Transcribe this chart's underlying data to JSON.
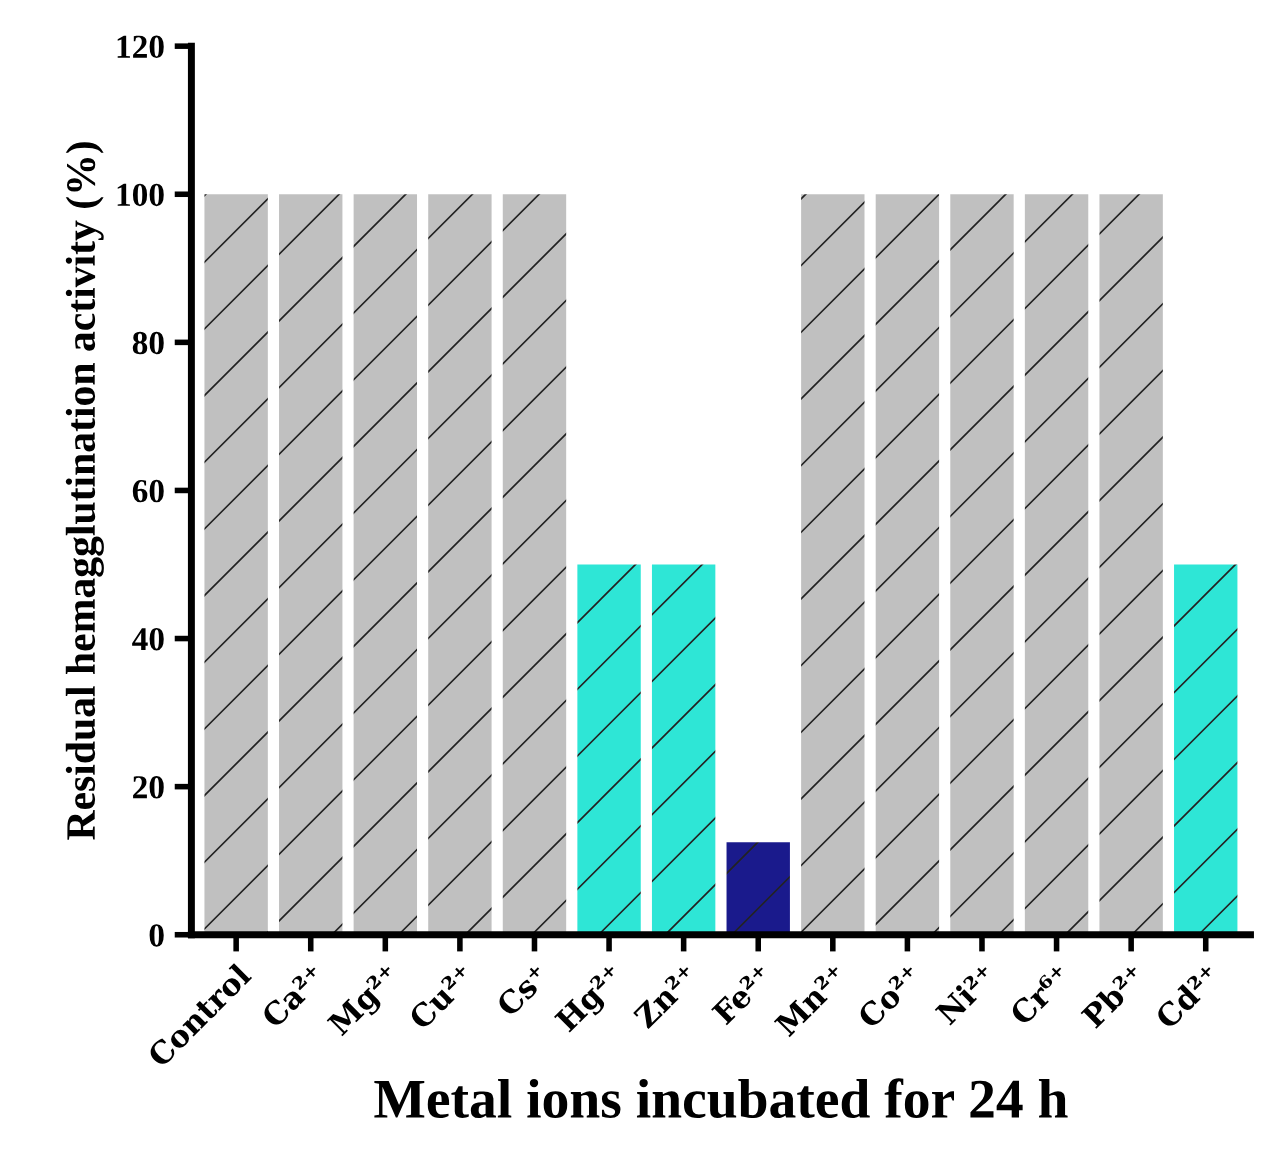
{
  "chart_data": {
    "type": "bar",
    "xlabel": "Metal ions incubated for 24 h",
    "ylabel": "Residual hemagglutination activity (%)",
    "categories": [
      "Control",
      "Ca²⁺",
      "Mg²⁺",
      "Cu²⁺",
      "Cs⁺",
      "Hg²⁺",
      "Zn²⁺",
      "Fe²⁺",
      "Mn²⁺",
      "Co²⁺",
      "Ni²⁺",
      "Cr⁶⁺",
      "Pb²⁺",
      "Cd²⁺"
    ],
    "values": [
      100,
      100,
      100,
      100,
      100,
      50,
      50,
      12.5,
      100,
      100,
      100,
      100,
      100,
      50
    ],
    "colors": [
      "#c0c0c0",
      "#c0c0c0",
      "#c0c0c0",
      "#c0c0c0",
      "#c0c0c0",
      "#2ee6d6",
      "#2ee6d6",
      "#1a1a8c",
      "#c0c0c0",
      "#c0c0c0",
      "#c0c0c0",
      "#c0c0c0",
      "#c0c0c0",
      "#2ee6d6"
    ],
    "ylim": [
      0,
      120
    ],
    "yticks": [
      0,
      20,
      40,
      60,
      80,
      100,
      120
    ],
    "grid": false,
    "legend": false
  }
}
